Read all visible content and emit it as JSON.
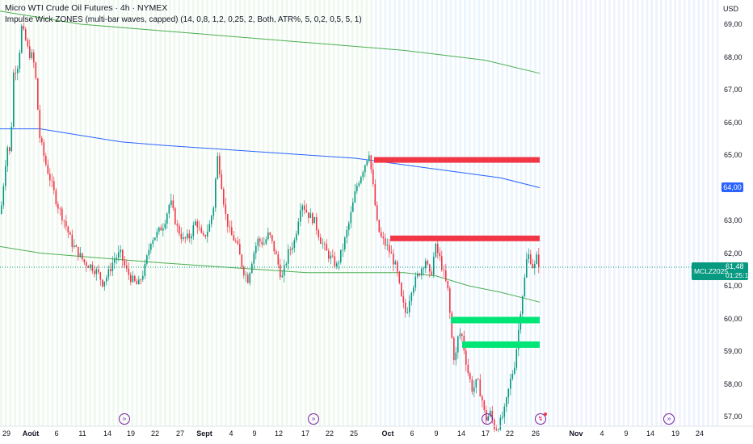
{
  "header": {
    "title": "Micro WTI Crude Oil Futures · 4h · NYMEX",
    "indicator": "Impulse Wick ZONES (multi-bar waves, capped) (14, 0,8, 1,2, 0,25, 2, Both, ATR%, 5, 0,2, 0,5, 5, 1)"
  },
  "currency": "USD",
  "price_axis": {
    "ticks": [
      "69,00",
      "68,00",
      "67,00",
      "66,00",
      "65,00",
      "64,00",
      "63,00",
      "62,00",
      "61,00",
      "60,00",
      "59,00",
      "58,00",
      "57,00"
    ],
    "blue_line_label": "64,00"
  },
  "time_axis": {
    "ticks": [
      {
        "label": "29",
        "bold": false
      },
      {
        "label": "Août",
        "bold": true
      },
      {
        "label": "6",
        "bold": false
      },
      {
        "label": "11",
        "bold": false
      },
      {
        "label": "14",
        "bold": false
      },
      {
        "label": "19",
        "bold": false
      },
      {
        "label": "22",
        "bold": false
      },
      {
        "label": "27",
        "bold": false
      },
      {
        "label": "Sept",
        "bold": true
      },
      {
        "label": "4",
        "bold": false
      },
      {
        "label": "9",
        "bold": false
      },
      {
        "label": "12",
        "bold": false
      },
      {
        "label": "17",
        "bold": false
      },
      {
        "label": "22",
        "bold": false
      },
      {
        "label": "25",
        "bold": false
      },
      {
        "label": "Oct",
        "bold": true
      },
      {
        "label": "6",
        "bold": false
      },
      {
        "label": "9",
        "bold": false
      },
      {
        "label": "14",
        "bold": false
      },
      {
        "label": "17",
        "bold": false
      },
      {
        "label": "22",
        "bold": false
      },
      {
        "label": "26",
        "bold": false
      },
      {
        "label": "Nov",
        "bold": true
      },
      {
        "label": "4",
        "bold": false
      },
      {
        "label": "9",
        "bold": false
      },
      {
        "label": "14",
        "bold": false
      },
      {
        "label": "19",
        "bold": false
      },
      {
        "label": "24",
        "bold": false
      }
    ]
  },
  "last_price": {
    "symbol": "MCLZ2025",
    "price": "61,48",
    "countdown": "01:25:13"
  },
  "colors": {
    "up": "#089981",
    "down": "#f23645",
    "zone_resistance": "#f23645",
    "zone_support": "#00e676",
    "ma_blue": "#2962ff",
    "ma_green": "#4caf50"
  },
  "event_icons": [
    "fast-forward-icon",
    "fast-forward-icon",
    "fast-forward-icon",
    "lightning-icon",
    "fast-forward-icon"
  ],
  "chart_data": {
    "type": "candlestick",
    "y_range": [
      56.7,
      69.3
    ],
    "price_path": [
      [
        0,
        63.2
      ],
      [
        8,
        65.3
      ],
      [
        12,
        65.0
      ],
      [
        16,
        67.5
      ],
      [
        22,
        67.8
      ],
      [
        26,
        68.9
      ],
      [
        30,
        68.6
      ],
      [
        35,
        68.1
      ],
      [
        40,
        68.0
      ],
      [
        44,
        67.2
      ],
      [
        48,
        65.6
      ],
      [
        55,
        64.8
      ],
      [
        62,
        64.2
      ],
      [
        70,
        63.5
      ],
      [
        80,
        62.9
      ],
      [
        88,
        62.3
      ],
      [
        96,
        62.0
      ],
      [
        104,
        61.7
      ],
      [
        112,
        61.6
      ],
      [
        120,
        61.4
      ],
      [
        126,
        61.1
      ],
      [
        132,
        61.3
      ],
      [
        140,
        61.8
      ],
      [
        148,
        62.0
      ],
      [
        155,
        61.5
      ],
      [
        162,
        61.2
      ],
      [
        170,
        61.0
      ],
      [
        178,
        61.5
      ],
      [
        186,
        62.4
      ],
      [
        194,
        62.6
      ],
      [
        202,
        62.9
      ],
      [
        210,
        63.6
      ],
      [
        218,
        62.8
      ],
      [
        226,
        62.4
      ],
      [
        234,
        62.5
      ],
      [
        242,
        63.0
      ],
      [
        250,
        62.4
      ],
      [
        258,
        62.8
      ],
      [
        264,
        63.5
      ],
      [
        268,
        65.0
      ],
      [
        272,
        64.4
      ],
      [
        278,
        63.2
      ],
      [
        284,
        62.6
      ],
      [
        292,
        62.3
      ],
      [
        300,
        61.5
      ],
      [
        306,
        61.2
      ],
      [
        312,
        61.9
      ],
      [
        318,
        62.4
      ],
      [
        326,
        62.3
      ],
      [
        332,
        62.6
      ],
      [
        340,
        62.0
      ],
      [
        348,
        61.2
      ],
      [
        356,
        62.0
      ],
      [
        364,
        62.4
      ],
      [
        372,
        63.6
      ],
      [
        380,
        63.2
      ],
      [
        388,
        63.0
      ],
      [
        396,
        62.4
      ],
      [
        404,
        62.0
      ],
      [
        410,
        61.8
      ],
      [
        416,
        61.6
      ],
      [
        424,
        62.2
      ],
      [
        432,
        63.0
      ],
      [
        440,
        64.0
      ],
      [
        446,
        64.4
      ],
      [
        452,
        64.8
      ],
      [
        456,
        65.1
      ],
      [
        462,
        63.8
      ],
      [
        466,
        62.9
      ],
      [
        470,
        62.5
      ],
      [
        478,
        62.2
      ],
      [
        484,
        61.9
      ],
      [
        490,
        61.5
      ],
      [
        496,
        60.6
      ],
      [
        502,
        60.1
      ],
      [
        508,
        60.9
      ],
      [
        514,
        61.2
      ],
      [
        520,
        61.5
      ],
      [
        526,
        61.8
      ],
      [
        532,
        61.2
      ],
      [
        538,
        62.2
      ],
      [
        544,
        61.8
      ],
      [
        550,
        61.2
      ],
      [
        554,
        60.8
      ],
      [
        558,
        59.5
      ],
      [
        562,
        58.6
      ],
      [
        566,
        59.4
      ],
      [
        570,
        59.6
      ],
      [
        574,
        59.0
      ],
      [
        578,
        58.4
      ],
      [
        584,
        57.8
      ],
      [
        590,
        58.1
      ],
      [
        596,
        57.5
      ],
      [
        600,
        56.9
      ],
      [
        606,
        57.1
      ],
      [
        612,
        56.6
      ],
      [
        618,
        56.8
      ],
      [
        624,
        57.2
      ],
      [
        630,
        58.0
      ],
      [
        636,
        58.6
      ],
      [
        640,
        59.4
      ],
      [
        644,
        60.4
      ],
      [
        648,
        61.1
      ],
      [
        652,
        62.0
      ],
      [
        656,
        61.8
      ],
      [
        660,
        61.5
      ],
      [
        664,
        61.9
      ],
      [
        668,
        61.48
      ]
    ],
    "zones": [
      {
        "kind": "resistance",
        "price": 64.85,
        "x_start": 463,
        "x_end": 668
      },
      {
        "kind": "resistance",
        "price": 62.45,
        "x_start": 483,
        "x_end": 668
      },
      {
        "kind": "support",
        "price": 59.95,
        "x_start": 558,
        "x_end": 668
      },
      {
        "kind": "support",
        "price": 59.2,
        "x_start": 572,
        "x_end": 668
      }
    ],
    "ma_green_upper": [
      [
        0,
        69.4
      ],
      [
        50,
        69.2
      ],
      [
        100,
        69.0
      ],
      [
        200,
        68.8
      ],
      [
        300,
        68.6
      ],
      [
        400,
        68.4
      ],
      [
        500,
        68.2
      ],
      [
        600,
        67.9
      ],
      [
        668,
        67.5
      ]
    ],
    "ma_blue": [
      [
        0,
        65.8
      ],
      [
        50,
        65.8
      ],
      [
        100,
        65.6
      ],
      [
        150,
        65.4
      ],
      [
        200,
        65.3
      ],
      [
        260,
        65.2
      ],
      [
        320,
        65.1
      ],
      [
        380,
        65.0
      ],
      [
        440,
        64.9
      ],
      [
        500,
        64.7
      ],
      [
        560,
        64.5
      ],
      [
        620,
        64.3
      ],
      [
        668,
        64.0
      ]
    ],
    "ma_green_lower": [
      [
        0,
        62.2
      ],
      [
        50,
        62.0
      ],
      [
        100,
        61.9
      ],
      [
        150,
        61.8
      ],
      [
        200,
        61.7
      ],
      [
        260,
        61.6
      ],
      [
        320,
        61.5
      ],
      [
        380,
        61.4
      ],
      [
        440,
        61.4
      ],
      [
        500,
        61.4
      ],
      [
        540,
        61.3
      ],
      [
        580,
        61.0
      ],
      [
        620,
        60.8
      ],
      [
        668,
        60.5
      ]
    ]
  }
}
